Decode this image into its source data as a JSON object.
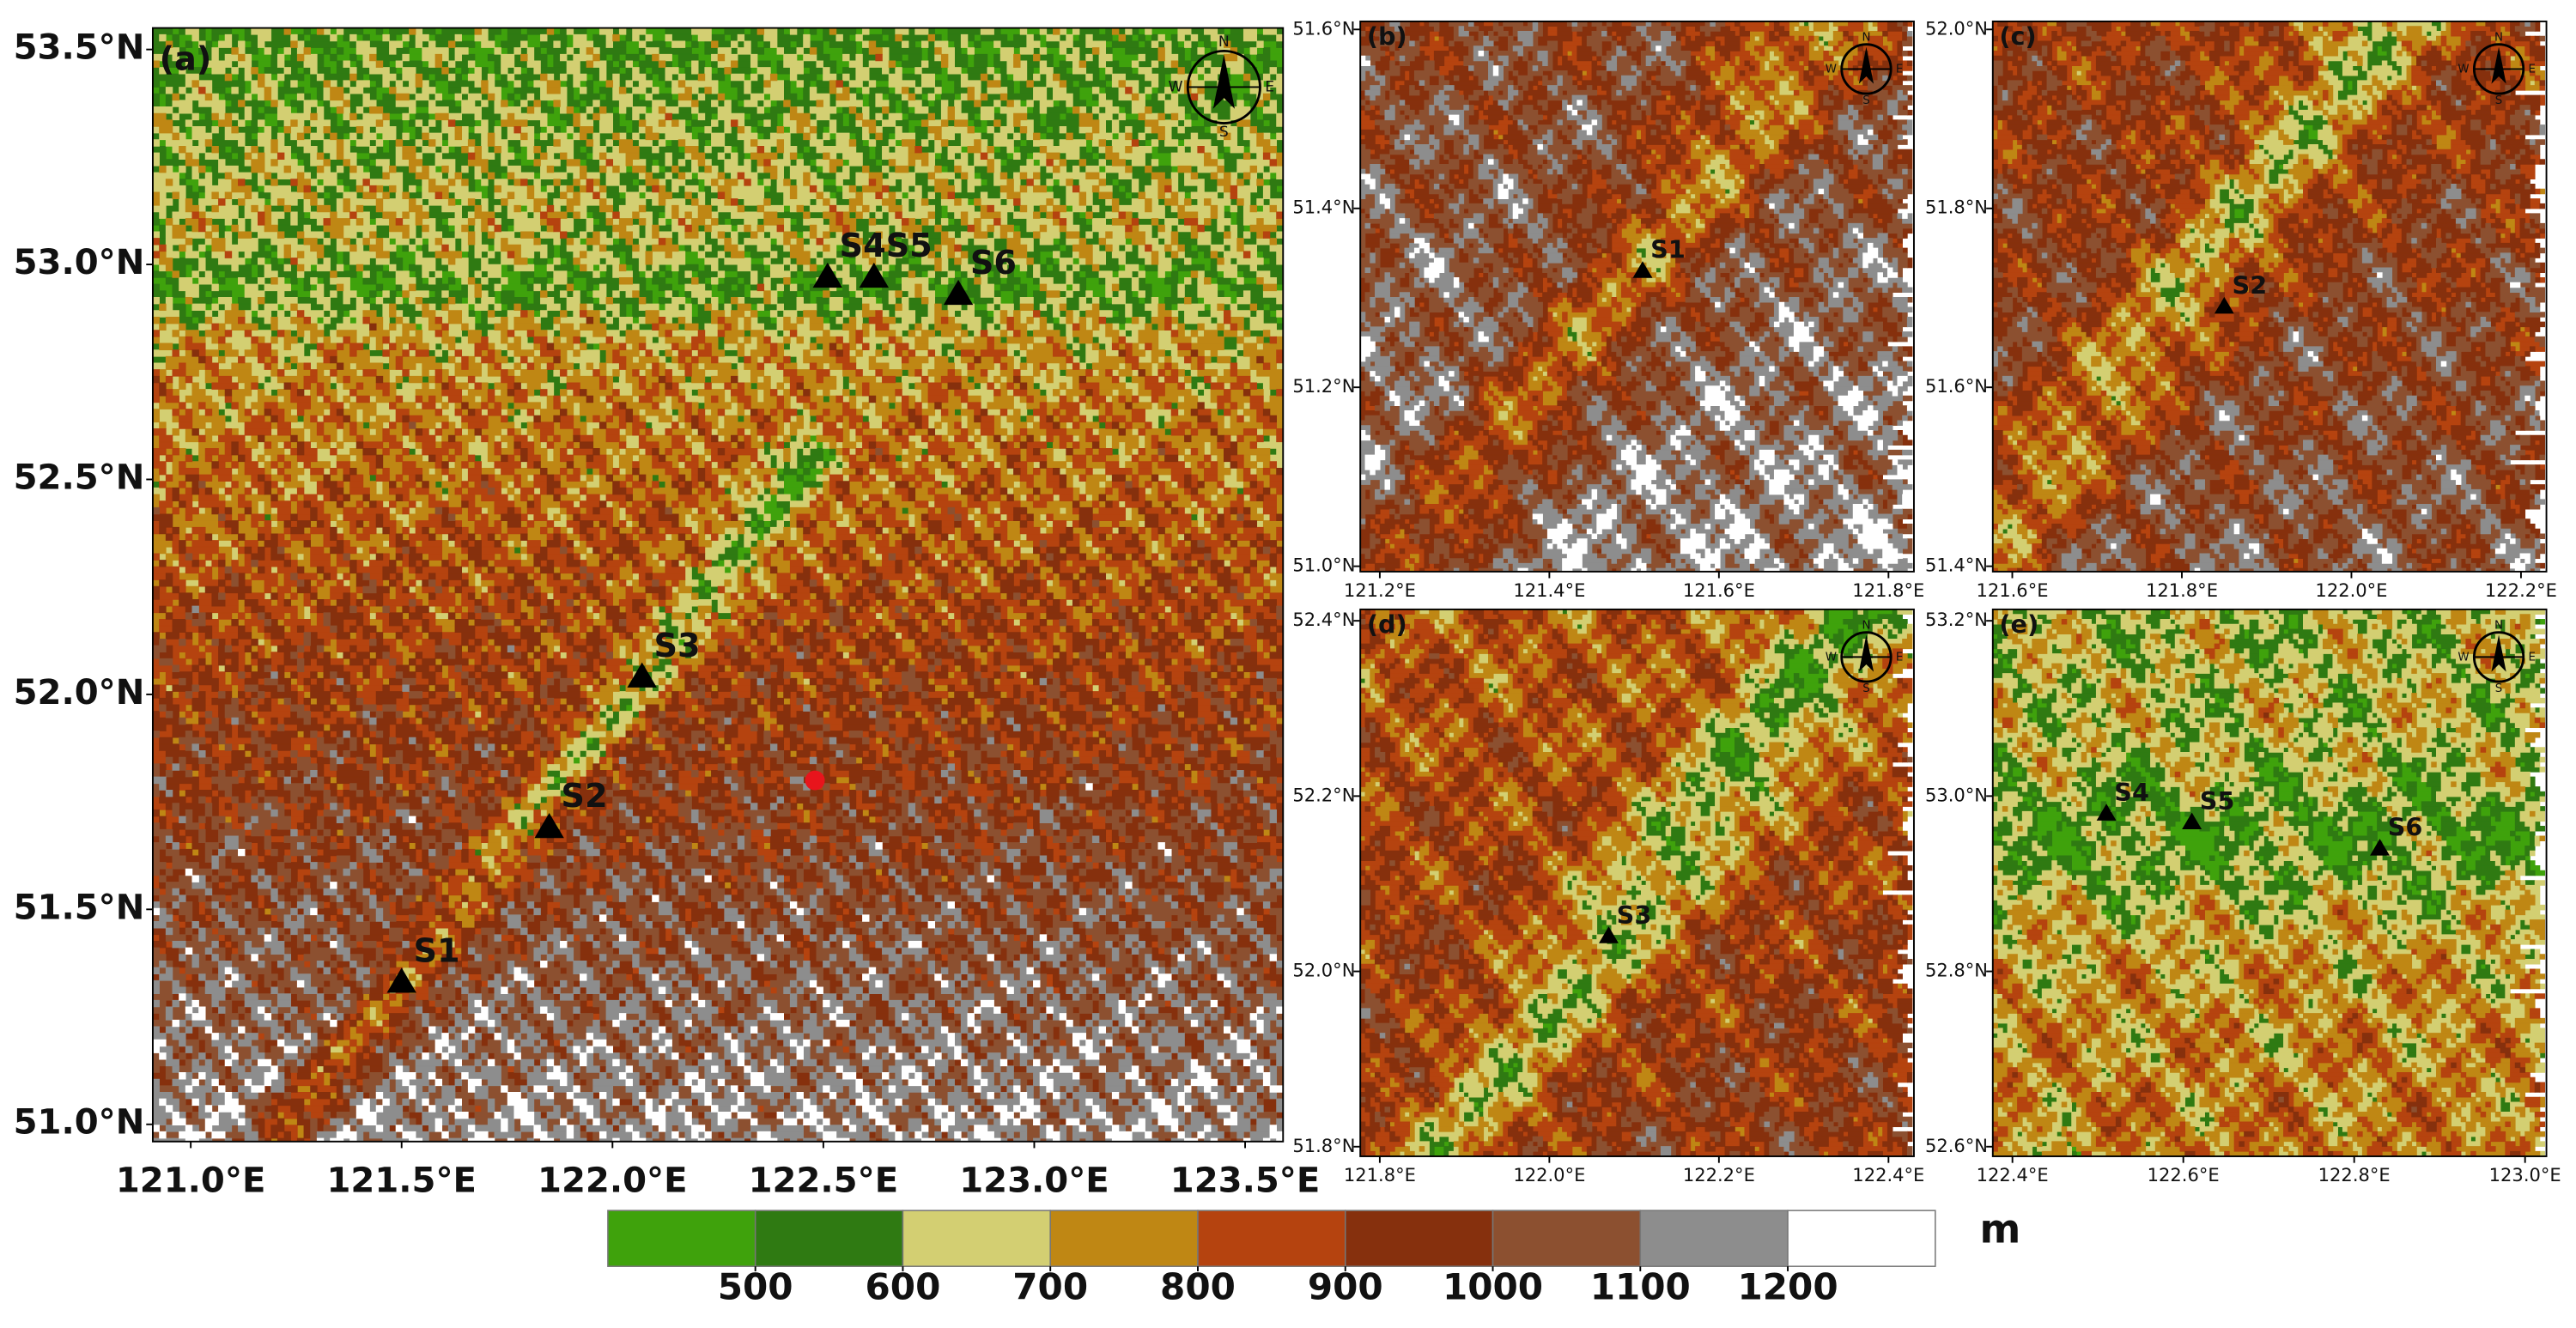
{
  "panels": [
    {
      "label": "(a)",
      "xlim": [
        120.91,
        123.59
      ],
      "ylim": [
        50.96,
        53.55
      ],
      "xticks": [
        {
          "value": 121.0,
          "label": "121.0°E"
        },
        {
          "value": 121.5,
          "label": "121.5°E"
        },
        {
          "value": 122.0,
          "label": "122.0°E"
        },
        {
          "value": 122.5,
          "label": "122.5°E"
        },
        {
          "value": 123.0,
          "label": "123.0°E"
        },
        {
          "value": 123.5,
          "label": "123.5°E"
        }
      ],
      "yticks": [
        {
          "value": 51.0,
          "label": "51.0°N"
        },
        {
          "value": 51.5,
          "label": "51.5°N"
        },
        {
          "value": 52.0,
          "label": "52.0°N"
        },
        {
          "value": 52.5,
          "label": "52.5°N"
        },
        {
          "value": 53.0,
          "label": "53.0°N"
        },
        {
          "value": 53.5,
          "label": "53.5°N"
        }
      ],
      "stations": [
        {
          "name": "S1",
          "lon": 121.5,
          "lat": 51.33
        },
        {
          "name": "S2",
          "lon": 121.85,
          "lat": 51.69
        },
        {
          "name": "S3",
          "lon": 122.07,
          "lat": 52.04
        },
        {
          "name": "S4",
          "lon": 122.51,
          "lat": 52.97
        },
        {
          "name": "S5",
          "lon": 122.62,
          "lat": 52.97
        },
        {
          "name": "S6",
          "lon": 122.82,
          "lat": 52.93
        }
      ],
      "point": {
        "lon": 122.48,
        "lat": 51.8
      }
    },
    {
      "label": "(b)",
      "xlim": [
        121.177,
        121.83
      ],
      "ylim": [
        50.994,
        51.609
      ],
      "xticks": [
        {
          "value": 121.2,
          "label": "121.2°E"
        },
        {
          "value": 121.4,
          "label": "121.4°E"
        },
        {
          "value": 121.6,
          "label": "121.6°E"
        },
        {
          "value": 121.8,
          "label": "121.8°E"
        }
      ],
      "yticks": [
        {
          "value": 51.0,
          "label": "51.0°N"
        },
        {
          "value": 51.2,
          "label": "51.2°N"
        },
        {
          "value": 51.4,
          "label": "51.4°N"
        },
        {
          "value": 51.6,
          "label": "51.6°N"
        }
      ],
      "stations": [
        {
          "name": "S1",
          "lon": 121.51,
          "lat": 51.33
        }
      ]
    },
    {
      "label": "(c)",
      "xlim": [
        121.577,
        122.23
      ],
      "ylim": [
        51.394,
        52.009
      ],
      "xticks": [
        {
          "value": 121.6,
          "label": "121.6°E"
        },
        {
          "value": 121.8,
          "label": "121.8°E"
        },
        {
          "value": 122.0,
          "label": "122.0°E"
        },
        {
          "value": 122.2,
          "label": "122.2°E"
        }
      ],
      "yticks": [
        {
          "value": 51.4,
          "label": "51.4°N"
        },
        {
          "value": 51.6,
          "label": "51.6°N"
        },
        {
          "value": 51.8,
          "label": "51.8°N"
        },
        {
          "value": 52.0,
          "label": "52.0°N"
        }
      ],
      "stations": [
        {
          "name": "S2",
          "lon": 121.85,
          "lat": 51.69
        }
      ]
    },
    {
      "label": "(d)",
      "xlim": [
        121.777,
        122.43
      ],
      "ylim": [
        51.789,
        52.413
      ],
      "xticks": [
        {
          "value": 121.8,
          "label": "121.8°E"
        },
        {
          "value": 122.0,
          "label": "122.0°E"
        },
        {
          "value": 122.2,
          "label": "122.2°E"
        },
        {
          "value": 122.4,
          "label": "122.4°E"
        }
      ],
      "yticks": [
        {
          "value": 51.8,
          "label": "51.8°N"
        },
        {
          "value": 52.0,
          "label": "52.0°N"
        },
        {
          "value": 52.2,
          "label": "52.2°N"
        },
        {
          "value": 52.4,
          "label": "52.4°N"
        }
      ],
      "stations": [
        {
          "name": "S3",
          "lon": 122.07,
          "lat": 52.04
        }
      ]
    },
    {
      "label": "(e)",
      "xlim": [
        122.377,
        123.025
      ],
      "ylim": [
        52.589,
        53.213
      ],
      "xticks": [
        {
          "value": 122.4,
          "label": "122.4°E"
        },
        {
          "value": 122.6,
          "label": "122.6°E"
        },
        {
          "value": 122.8,
          "label": "122.8°E"
        },
        {
          "value": 123.0,
          "label": "123.0°E"
        }
      ],
      "yticks": [
        {
          "value": 52.6,
          "label": "52.6°N"
        },
        {
          "value": 52.8,
          "label": "52.8°N"
        },
        {
          "value": 53.0,
          "label": "53.0°N"
        },
        {
          "value": 53.2,
          "label": "53.2°N"
        }
      ],
      "stations": [
        {
          "name": "S4",
          "lon": 122.51,
          "lat": 52.98
        },
        {
          "name": "S5",
          "lon": 122.61,
          "lat": 52.97
        },
        {
          "name": "S6",
          "lon": 122.83,
          "lat": 52.94
        }
      ]
    }
  ],
  "compass": {
    "n": "N",
    "e": "E",
    "s": "S",
    "w": "W"
  },
  "colorbar": {
    "unit": "m",
    "lim": [
      400,
      1300
    ],
    "ticks": [
      500,
      600,
      700,
      800,
      900,
      1000,
      1100,
      1200
    ],
    "colors": [
      "#3fa20c",
      "#2f7a12",
      "#d3cf72",
      "#bf8714",
      "#b5430f",
      "#86300d",
      "#8c5030",
      "#8d8d8d",
      "#ffffff"
    ]
  }
}
